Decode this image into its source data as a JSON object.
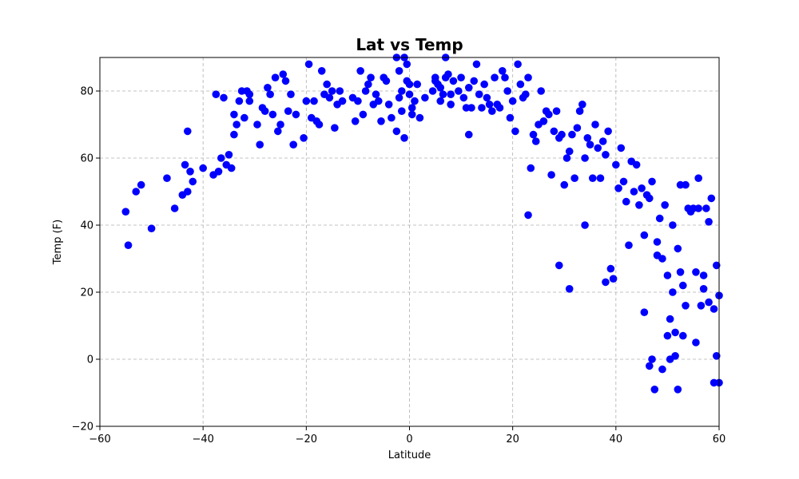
{
  "chart_data": {
    "type": "scatter",
    "title": "Lat vs Temp",
    "xlabel": "Latitude",
    "ylabel": "Temp (F)",
    "xlim": [
      -60,
      60
    ],
    "ylim": [
      -20,
      90
    ],
    "xticks": [
      -60,
      -40,
      -20,
      0,
      20,
      40,
      60
    ],
    "yticks": [
      -20,
      0,
      20,
      40,
      60,
      80
    ],
    "xtick_labels": [
      "−60",
      "−40",
      "−20",
      "0",
      "20",
      "40",
      "60"
    ],
    "ytick_labels": [
      "−20",
      "0",
      "20",
      "40",
      "60",
      "80"
    ],
    "grid": true,
    "marker_color": "#0000ff",
    "series": [
      {
        "points": [
          [
            -55,
            44
          ],
          [
            -54.5,
            34
          ],
          [
            -53,
            50
          ],
          [
            -52,
            52
          ],
          [
            -50,
            39
          ],
          [
            -47,
            54
          ],
          [
            -45.5,
            45
          ],
          [
            -44,
            49
          ],
          [
            -43.5,
            58
          ],
          [
            -43,
            68
          ],
          [
            -43,
            50
          ],
          [
            -42.5,
            56
          ],
          [
            -42,
            53
          ],
          [
            -40,
            57
          ],
          [
            -38,
            55
          ],
          [
            -37.5,
            79
          ],
          [
            -37,
            56
          ],
          [
            -36.5,
            60
          ],
          [
            -36,
            78
          ],
          [
            -35.5,
            58
          ],
          [
            -35,
            61
          ],
          [
            -34.5,
            57
          ],
          [
            -34,
            73
          ],
          [
            -34,
            67
          ],
          [
            -33.5,
            70
          ],
          [
            -33,
            77
          ],
          [
            -32.5,
            80
          ],
          [
            -32,
            72
          ],
          [
            -31.5,
            80
          ],
          [
            -31,
            77
          ],
          [
            -31,
            79
          ],
          [
            -29.5,
            70
          ],
          [
            -29,
            64
          ],
          [
            -28.5,
            75
          ],
          [
            -28,
            74
          ],
          [
            -27.5,
            81
          ],
          [
            -27,
            79
          ],
          [
            -26.5,
            73
          ],
          [
            -26,
            84
          ],
          [
            -25.5,
            68
          ],
          [
            -25,
            70
          ],
          [
            -24.5,
            85
          ],
          [
            -24,
            83
          ],
          [
            -23.5,
            74
          ],
          [
            -23,
            79
          ],
          [
            -22.5,
            64
          ],
          [
            -22,
            73
          ],
          [
            -20.5,
            66
          ],
          [
            -20,
            77
          ],
          [
            -19.5,
            88
          ],
          [
            -19,
            72
          ],
          [
            -18.5,
            77
          ],
          [
            -18,
            71
          ],
          [
            -17.5,
            70
          ],
          [
            -17,
            86
          ],
          [
            -16.5,
            79
          ],
          [
            -16,
            82
          ],
          [
            -15.5,
            78
          ],
          [
            -15,
            80
          ],
          [
            -14.5,
            69
          ],
          [
            -14,
            76
          ],
          [
            -13.5,
            80
          ],
          [
            -13,
            77
          ],
          [
            -11,
            78
          ],
          [
            -10.5,
            71
          ],
          [
            -10,
            77
          ],
          [
            -9.5,
            86
          ],
          [
            -9,
            73
          ],
          [
            -8.5,
            80
          ],
          [
            -8,
            82
          ],
          [
            -7.5,
            84
          ],
          [
            -7,
            76
          ],
          [
            -6.5,
            79
          ],
          [
            -6,
            77
          ],
          [
            -5.5,
            71
          ],
          [
            -5,
            84
          ],
          [
            -4.5,
            83
          ],
          [
            -4,
            76
          ],
          [
            -3.5,
            72
          ],
          [
            -2.5,
            90
          ],
          [
            -2.5,
            68
          ],
          [
            -2,
            86
          ],
          [
            -2,
            78
          ],
          [
            -1.5,
            80
          ],
          [
            -1.5,
            74
          ],
          [
            -1,
            90
          ],
          [
            -1,
            66
          ],
          [
            -0.5,
            88
          ],
          [
            -0.5,
            83
          ],
          [
            0,
            82
          ],
          [
            0,
            79
          ],
          [
            0.5,
            75
          ],
          [
            0.5,
            73
          ],
          [
            1,
            77
          ],
          [
            1.5,
            82
          ],
          [
            2,
            72
          ],
          [
            3,
            78
          ],
          [
            4.5,
            80
          ],
          [
            5,
            83
          ],
          [
            5,
            84
          ],
          [
            5.5,
            82
          ],
          [
            6,
            81
          ],
          [
            6,
            77
          ],
          [
            6.5,
            79
          ],
          [
            7,
            90
          ],
          [
            7,
            84
          ],
          [
            7.5,
            85
          ],
          [
            8,
            79
          ],
          [
            8,
            76
          ],
          [
            8.5,
            83
          ],
          [
            9.5,
            80
          ],
          [
            10,
            84
          ],
          [
            10.5,
            78
          ],
          [
            11,
            75
          ],
          [
            11.5,
            67
          ],
          [
            11.5,
            81
          ],
          [
            12,
            75
          ],
          [
            12.5,
            83
          ],
          [
            13,
            88
          ],
          [
            13.5,
            79
          ],
          [
            14,
            75
          ],
          [
            14.5,
            82
          ],
          [
            15,
            78
          ],
          [
            15.5,
            76
          ],
          [
            16,
            74
          ],
          [
            16.5,
            84
          ],
          [
            17,
            76
          ],
          [
            17.5,
            75
          ],
          [
            18,
            86
          ],
          [
            18.5,
            84
          ],
          [
            19,
            80
          ],
          [
            19.5,
            72
          ],
          [
            20,
            77
          ],
          [
            20.5,
            68
          ],
          [
            21,
            88
          ],
          [
            21.5,
            82
          ],
          [
            22,
            78
          ],
          [
            22.5,
            79
          ],
          [
            23,
            84
          ],
          [
            23,
            43
          ],
          [
            23.5,
            57
          ],
          [
            24,
            67
          ],
          [
            24.5,
            65
          ],
          [
            25,
            70
          ],
          [
            25.5,
            80
          ],
          [
            26,
            71
          ],
          [
            26.5,
            74
          ],
          [
            27,
            73
          ],
          [
            27.5,
            55
          ],
          [
            28,
            68
          ],
          [
            28.5,
            74
          ],
          [
            29,
            66
          ],
          [
            29,
            28
          ],
          [
            29.5,
            67
          ],
          [
            30,
            52
          ],
          [
            30.5,
            60
          ],
          [
            31,
            62
          ],
          [
            31,
            21
          ],
          [
            31.5,
            67
          ],
          [
            32,
            54
          ],
          [
            32.5,
            69
          ],
          [
            33,
            74
          ],
          [
            33.5,
            76
          ],
          [
            34,
            60
          ],
          [
            34,
            40
          ],
          [
            34.5,
            66
          ],
          [
            35,
            64
          ],
          [
            35.5,
            54
          ],
          [
            36,
            70
          ],
          [
            36.5,
            63
          ],
          [
            37,
            54
          ],
          [
            37.5,
            65
          ],
          [
            38,
            61
          ],
          [
            38,
            23
          ],
          [
            38.5,
            68
          ],
          [
            39,
            27
          ],
          [
            39.5,
            24
          ],
          [
            40,
            58
          ],
          [
            40.5,
            51
          ],
          [
            41,
            63
          ],
          [
            41.5,
            53
          ],
          [
            42,
            47
          ],
          [
            42.5,
            34
          ],
          [
            43,
            59
          ],
          [
            43.5,
            50
          ],
          [
            44,
            58
          ],
          [
            44.5,
            46
          ],
          [
            45,
            51
          ],
          [
            45.5,
            37
          ],
          [
            45.5,
            14
          ],
          [
            46,
            49
          ],
          [
            46.5,
            -2
          ],
          [
            46.5,
            48
          ],
          [
            47,
            0
          ],
          [
            47,
            53
          ],
          [
            47.5,
            -9
          ],
          [
            48,
            35
          ],
          [
            48,
            31
          ],
          [
            48.5,
            42
          ],
          [
            49,
            -3
          ],
          [
            49,
            30
          ],
          [
            49.5,
            46
          ],
          [
            50,
            25
          ],
          [
            50,
            7
          ],
          [
            50.5,
            0
          ],
          [
            50.5,
            12
          ],
          [
            51,
            20
          ],
          [
            51,
            40
          ],
          [
            51.5,
            1
          ],
          [
            51.5,
            8
          ],
          [
            52,
            -9
          ],
          [
            52,
            33
          ],
          [
            52.5,
            26
          ],
          [
            52.5,
            52
          ],
          [
            53,
            7
          ],
          [
            53,
            22
          ],
          [
            53.5,
            16
          ],
          [
            53.5,
            52
          ],
          [
            54,
            45
          ],
          [
            54.5,
            44
          ],
          [
            55,
            45
          ],
          [
            55.5,
            5
          ],
          [
            55.5,
            26
          ],
          [
            56,
            45
          ],
          [
            56,
            54
          ],
          [
            56.5,
            16
          ],
          [
            57,
            25
          ],
          [
            57,
            21
          ],
          [
            57.5,
            45
          ],
          [
            58,
            17
          ],
          [
            58,
            41
          ],
          [
            58.5,
            48
          ],
          [
            59,
            -7
          ],
          [
            59,
            15
          ],
          [
            59.5,
            1
          ],
          [
            59.5,
            28
          ],
          [
            60,
            19
          ],
          [
            60,
            -7
          ]
        ]
      }
    ]
  }
}
